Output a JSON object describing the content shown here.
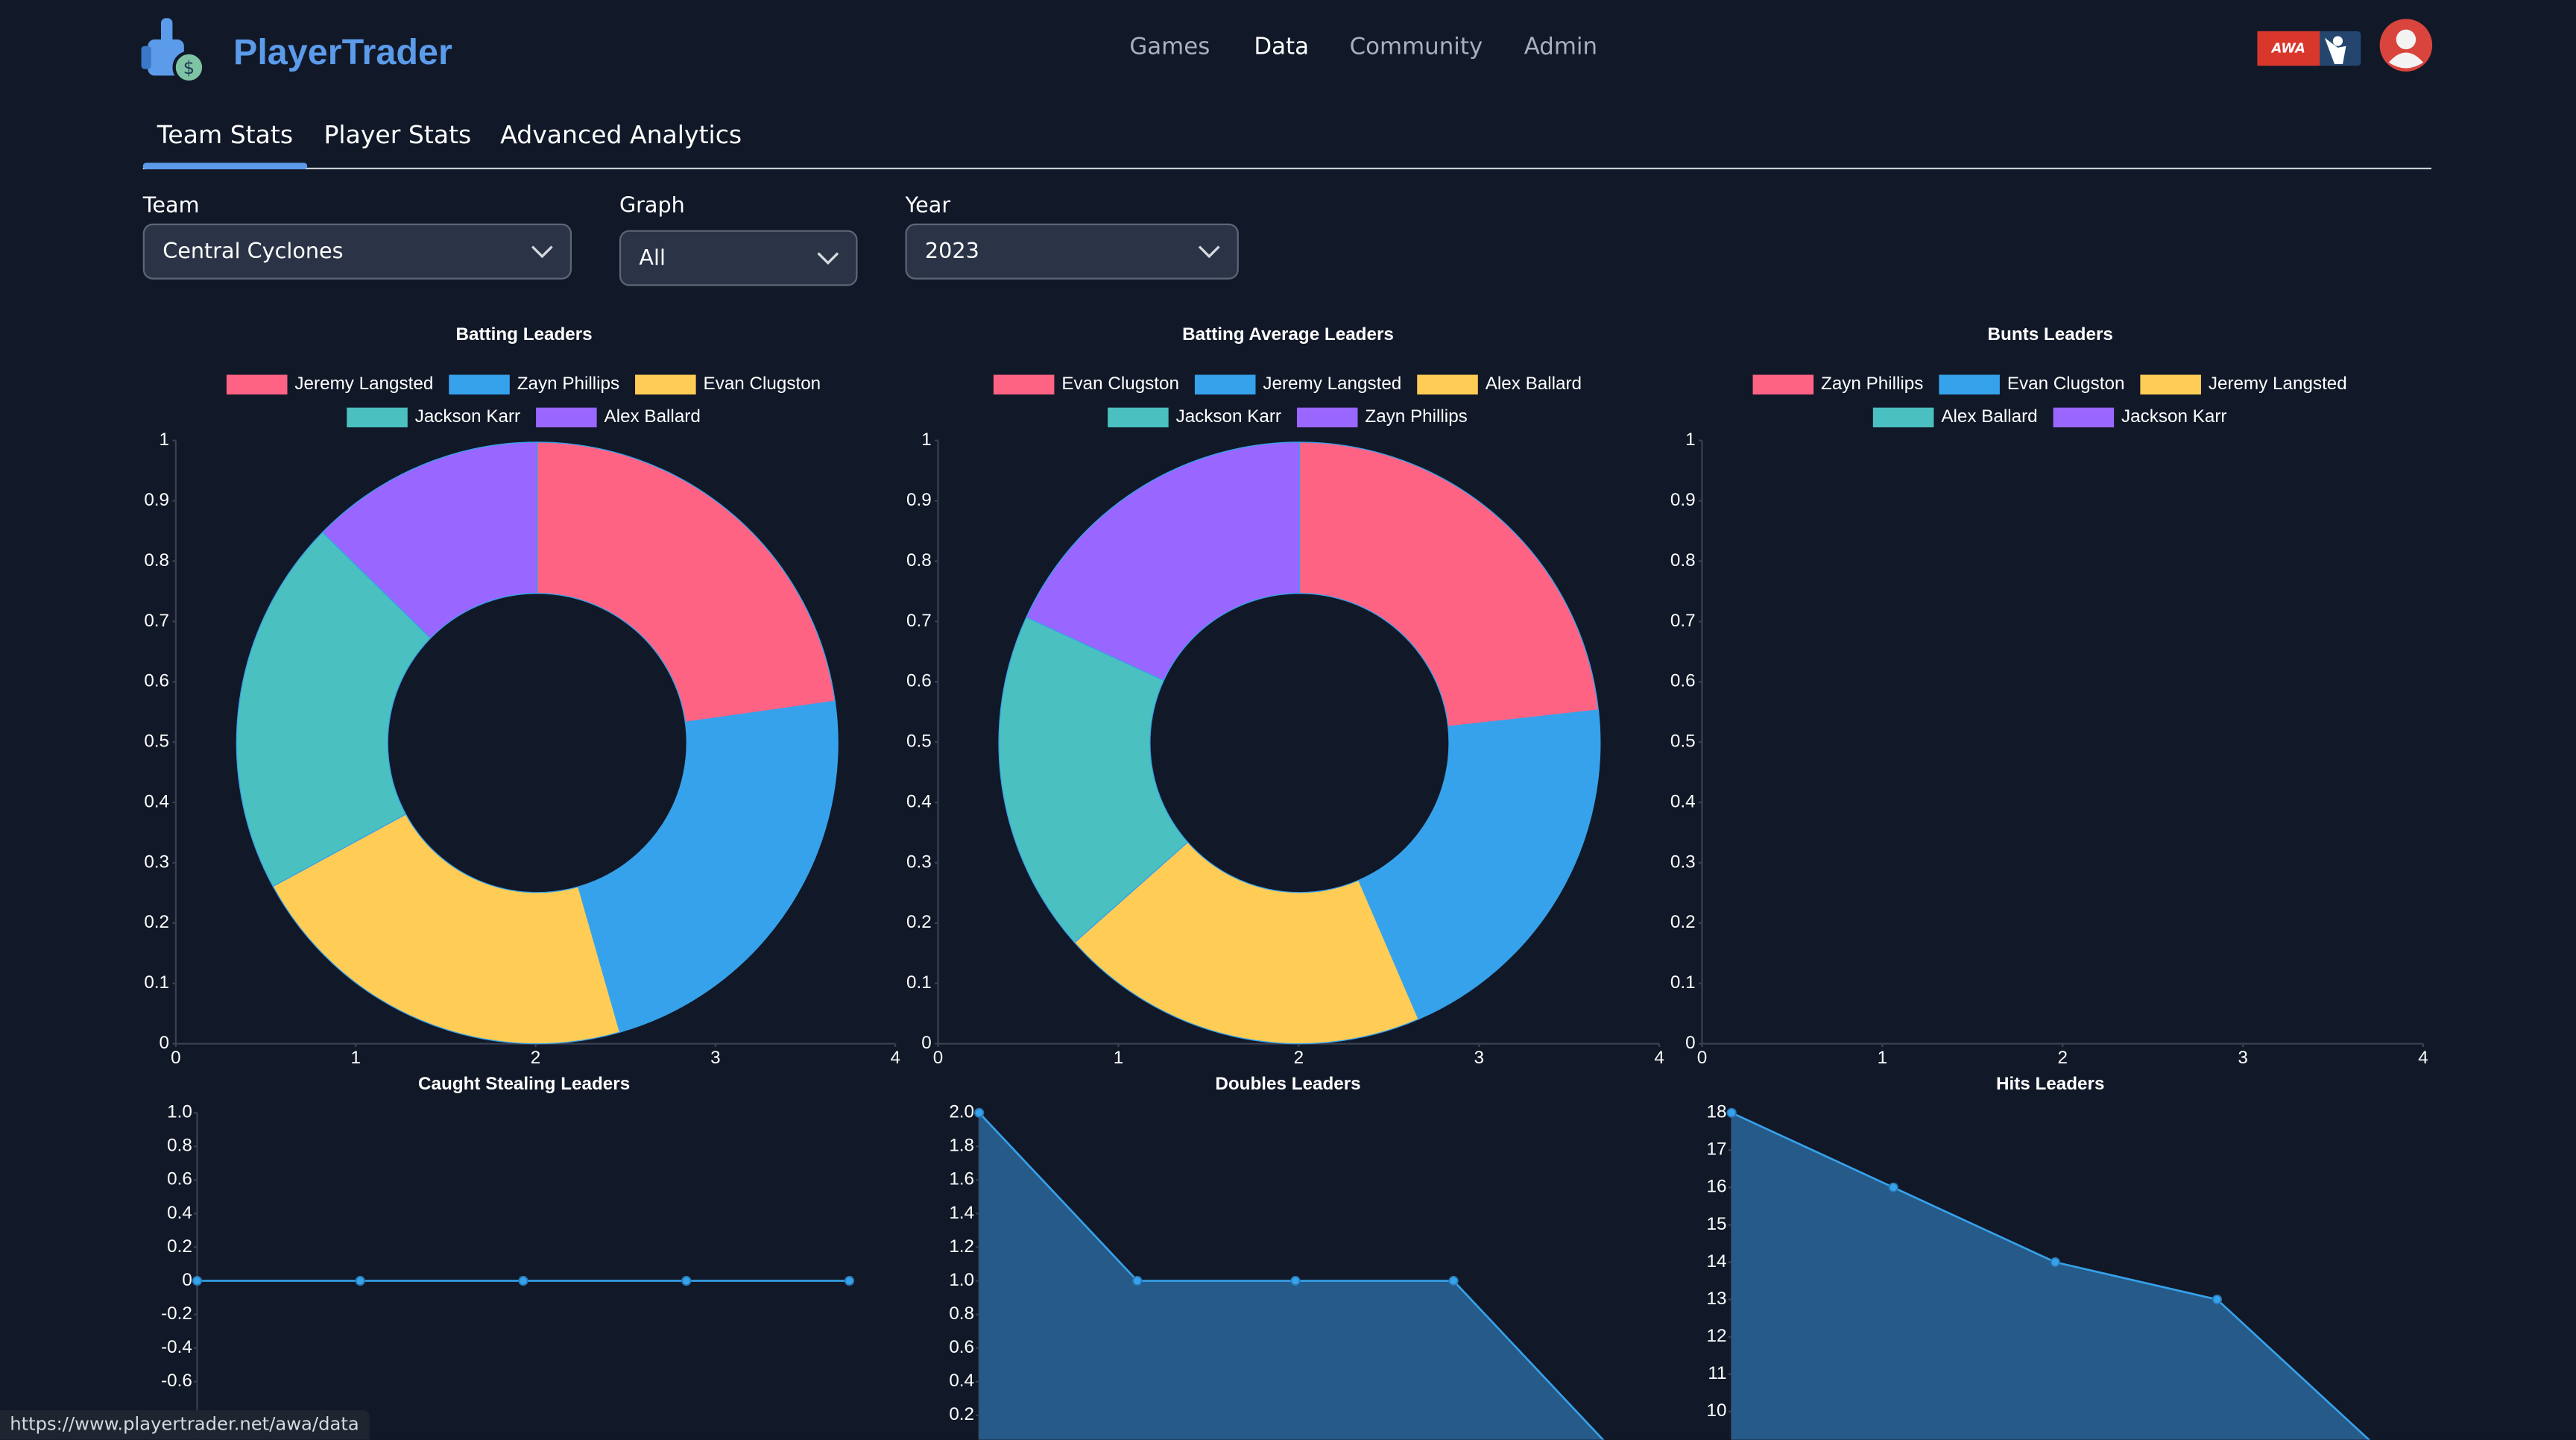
{
  "header": {
    "brand": "PlayerTrader",
    "nav": [
      "Games",
      "Data",
      "Community",
      "Admin"
    ],
    "badge": "AWA"
  },
  "tabs": [
    "Team Stats",
    "Player Stats",
    "Advanced Analytics"
  ],
  "filters": [
    {
      "label": "Team",
      "value": "Central Cyclones"
    },
    {
      "label": "Graph",
      "value": "All"
    },
    {
      "label": "Year",
      "value": "2023"
    }
  ],
  "chart_data": [
    {
      "type": "doughnut",
      "title": "Batting Leaders",
      "categories": [
        "Jeremy Langsted",
        "Zayn Phillips",
        "Evan Clugston",
        "Jackson Karr",
        "Alex Ballard"
      ],
      "values": [
        18,
        18,
        17,
        16,
        10
      ],
      "colors": [
        "#ff6384",
        "#36a2eb",
        "#ffcd56",
        "#4bc0c0",
        "#9966ff"
      ],
      "ylim": [
        0,
        1
      ],
      "yticks": [
        0,
        0.1,
        0.2,
        0.3,
        0.4,
        0.5,
        0.6,
        0.7,
        0.8,
        0.9,
        1
      ],
      "xlim": [
        0,
        4
      ],
      "xticks": [
        0,
        1,
        2,
        3,
        4
      ]
    },
    {
      "type": "doughnut",
      "title": "Batting Average Leaders",
      "categories": [
        "Evan Clugston",
        "Jeremy Langsted",
        "Alex Ballard",
        "Jackson Karr",
        "Zayn Phillips"
      ],
      "values": [
        0.35,
        0.305,
        0.3,
        0.277,
        0.273
      ],
      "colors": [
        "#ff6384",
        "#36a2eb",
        "#ffcd56",
        "#4bc0c0",
        "#9966ff"
      ],
      "ylim": [
        0,
        1
      ],
      "yticks": [
        0,
        0.1,
        0.2,
        0.3,
        0.4,
        0.5,
        0.6,
        0.7,
        0.8,
        0.9,
        1
      ],
      "xlim": [
        0,
        4
      ],
      "xticks": [
        0,
        1,
        2,
        3,
        4
      ]
    },
    {
      "type": "doughnut",
      "title": "Bunts Leaders",
      "categories": [
        "Zayn Phillips",
        "Evan Clugston",
        "Jeremy Langsted",
        "Alex Ballard",
        "Jackson Karr"
      ],
      "values": [
        0,
        0,
        0,
        0,
        0
      ],
      "colors": [
        "#ff6384",
        "#36a2eb",
        "#ffcd56",
        "#4bc0c0",
        "#9966ff"
      ],
      "ylim": [
        0,
        1
      ],
      "yticks": [
        0,
        0.1,
        0.2,
        0.3,
        0.4,
        0.5,
        0.6,
        0.7,
        0.8,
        0.9,
        1
      ],
      "xlim": [
        0,
        4
      ],
      "xticks": [
        0,
        1,
        2,
        3,
        4
      ]
    },
    {
      "type": "line",
      "title": "Caught Stealing Leaders",
      "values": [
        0,
        0,
        0,
        0,
        0
      ],
      "color": "#36a2eb",
      "fill": "#265a89",
      "ylim": [
        -1,
        1
      ],
      "yticks": [
        {
          "value": 1,
          "label": "1.0"
        },
        0.8,
        0.6,
        0.4,
        0.2,
        0,
        -0.2,
        -0.4,
        -0.6
      ]
    },
    {
      "type": "line",
      "title": "Doubles Leaders",
      "values": [
        2,
        1,
        1,
        1,
        0
      ],
      "color": "#36a2eb",
      "fill": "#265a89",
      "ylim": [
        0,
        2
      ],
      "yticks": [
        {
          "value": 2,
          "label": "2.0"
        },
        1.8,
        1.6,
        1.4,
        1.2,
        {
          "value": 1,
          "label": "1.0"
        },
        0.8,
        0.6,
        0.4,
        0.2
      ]
    },
    {
      "type": "line",
      "title": "Hits Leaders",
      "values": [
        18,
        16,
        14,
        13,
        9
      ],
      "color": "#36a2eb",
      "fill": "#265a89",
      "ylim": [
        9,
        18
      ],
      "yticks": [
        18,
        17,
        16,
        15,
        14,
        13,
        12,
        11,
        10
      ]
    }
  ],
  "status_url": "https://www.playertrader.net/awa/data"
}
